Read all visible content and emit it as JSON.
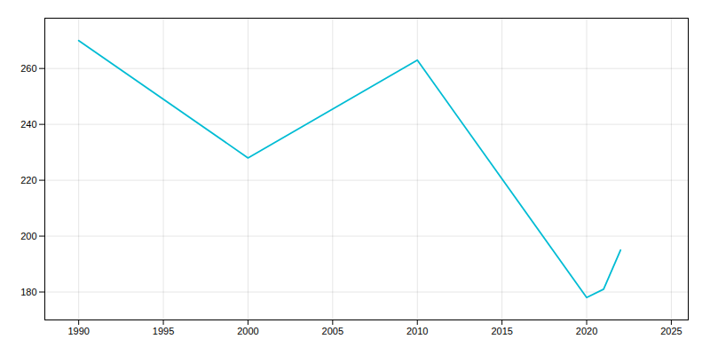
{
  "chart_data": {
    "type": "line",
    "x": [
      1990,
      2000,
      2010,
      2020,
      2021,
      2022
    ],
    "values": [
      270,
      228,
      263,
      178,
      181,
      195
    ],
    "color": "#00BCD4",
    "xlim": [
      1988,
      2026
    ],
    "ylim": [
      170,
      278
    ],
    "xticks": [
      1990,
      1995,
      2000,
      2005,
      2010,
      2015,
      2020,
      2025
    ],
    "yticks": [
      180,
      200,
      220,
      240,
      260
    ],
    "grid": true
  }
}
